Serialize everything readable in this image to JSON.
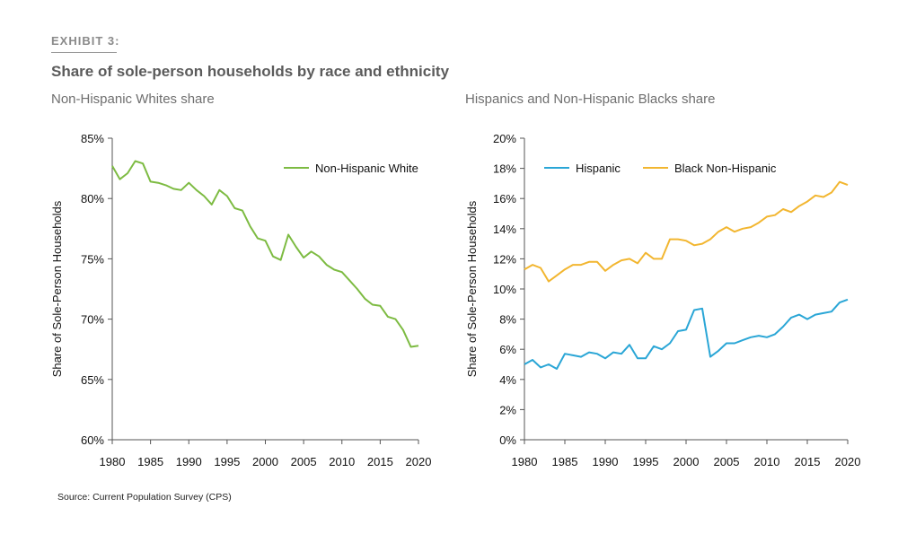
{
  "header": {
    "exhibit": "EXHIBIT 3:",
    "title": "Share of sole-person households by race and ethnicity"
  },
  "source": "Source: Current Population Survey (CPS)",
  "chart_data": [
    {
      "type": "line",
      "subtitle": "Non-Hispanic Whites share",
      "xlabel": "",
      "ylabel": "Share of Sole-Person Households",
      "xlim": [
        1980,
        2020
      ],
      "ylim": [
        60,
        85
      ],
      "x_ticks": [
        "1980",
        "1985",
        "1990",
        "1995",
        "2000",
        "2005",
        "2010",
        "2015",
        "2020"
      ],
      "y_ticks": [
        "60%",
        "65%",
        "70%",
        "75%",
        "80%",
        "85%"
      ],
      "legend_position": "top-right",
      "x": [
        1980,
        1981,
        1982,
        1983,
        1984,
        1985,
        1986,
        1987,
        1988,
        1989,
        1990,
        1991,
        1992,
        1993,
        1994,
        1995,
        1996,
        1997,
        1998,
        1999,
        2000,
        2001,
        2002,
        2003,
        2004,
        2005,
        2006,
        2007,
        2008,
        2009,
        2010,
        2011,
        2012,
        2013,
        2014,
        2015,
        2016,
        2017,
        2018,
        2019,
        2020
      ],
      "series": [
        {
          "name": "Non-Hispanic White",
          "color": "#7dbb42",
          "values": [
            82.7,
            81.6,
            82.1,
            83.1,
            82.9,
            81.4,
            81.3,
            81.1,
            80.8,
            80.7,
            81.3,
            80.7,
            80.2,
            79.5,
            80.7,
            80.2,
            79.2,
            79.0,
            77.7,
            76.7,
            76.5,
            75.2,
            74.9,
            77.0,
            76.0,
            75.1,
            75.6,
            75.2,
            74.5,
            74.1,
            73.9,
            73.2,
            72.5,
            71.7,
            71.2,
            71.1,
            70.2,
            70.0,
            69.1,
            67.7,
            67.8
          ]
        }
      ]
    },
    {
      "type": "line",
      "subtitle": "Hispanics and Non-Hispanic Blacks share",
      "xlabel": "",
      "ylabel": "Share of Sole-Person Households",
      "xlim": [
        1980,
        2020
      ],
      "ylim": [
        0,
        20
      ],
      "x_ticks": [
        "1980",
        "1985",
        "1990",
        "1995",
        "2000",
        "2005",
        "2010",
        "2015",
        "2020"
      ],
      "y_ticks": [
        "0%",
        "2%",
        "4%",
        "6%",
        "8%",
        "10%",
        "12%",
        "14%",
        "16%",
        "18%",
        "20%"
      ],
      "legend_position": "top-left",
      "x": [
        1980,
        1981,
        1982,
        1983,
        1984,
        1985,
        1986,
        1987,
        1988,
        1989,
        1990,
        1991,
        1992,
        1993,
        1994,
        1995,
        1996,
        1997,
        1998,
        1999,
        2000,
        2001,
        2002,
        2003,
        2004,
        2005,
        2006,
        2007,
        2008,
        2009,
        2010,
        2011,
        2012,
        2013,
        2014,
        2015,
        2016,
        2017,
        2018,
        2019,
        2020
      ],
      "series": [
        {
          "name": "Hispanic",
          "color": "#2aa6d6",
          "values": [
            5.0,
            5.3,
            4.8,
            5.0,
            4.7,
            5.7,
            5.6,
            5.5,
            5.8,
            5.7,
            5.4,
            5.8,
            5.7,
            6.3,
            5.4,
            5.4,
            6.2,
            6.0,
            6.4,
            7.2,
            7.3,
            8.6,
            8.7,
            5.5,
            5.9,
            6.4,
            6.4,
            6.6,
            6.8,
            6.9,
            6.8,
            7.0,
            7.5,
            8.1,
            8.3,
            8.0,
            8.3,
            8.4,
            8.5,
            9.1,
            9.3
          ]
        },
        {
          "name": "Black Non-Hispanic",
          "color": "#f2b630",
          "values": [
            11.3,
            11.6,
            11.4,
            10.5,
            10.9,
            11.3,
            11.6,
            11.6,
            11.8,
            11.8,
            11.2,
            11.6,
            11.9,
            12.0,
            11.7,
            12.4,
            12.0,
            12.0,
            13.3,
            13.3,
            13.2,
            12.9,
            13.0,
            13.3,
            13.8,
            14.1,
            13.8,
            14.0,
            14.1,
            14.4,
            14.8,
            14.9,
            15.3,
            15.1,
            15.5,
            15.8,
            16.2,
            16.1,
            16.4,
            17.1,
            16.9
          ]
        }
      ]
    }
  ]
}
